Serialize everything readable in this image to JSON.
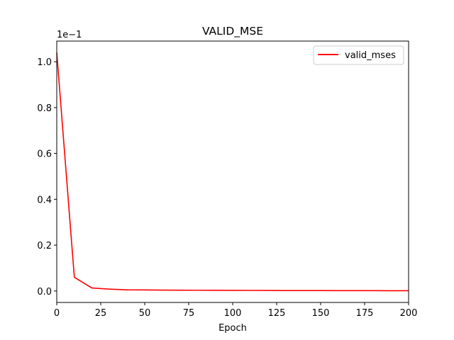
{
  "chart_data": {
    "type": "line",
    "title": "VALID_MSE",
    "xlabel": "Epoch",
    "ylabel": "",
    "scale_label": "1e−1",
    "xlim": [
      0,
      200
    ],
    "ylim": [
      -0.05,
      1.09
    ],
    "xticks": [
      0,
      25,
      50,
      75,
      100,
      125,
      150,
      175,
      200
    ],
    "xtick_labels": [
      "0",
      "25",
      "50",
      "75",
      "100",
      "125",
      "150",
      "175",
      "200"
    ],
    "yticks": [
      0.0,
      0.2,
      0.4,
      0.6,
      0.8,
      1.0
    ],
    "ytick_labels": [
      "0.0",
      "0.2",
      "0.4",
      "0.6",
      "0.8",
      "1.0"
    ],
    "grid": false,
    "legend_position": "upper right",
    "series": [
      {
        "name": "valid_mses",
        "color": "#ff0000",
        "x": [
          0,
          10,
          20,
          30,
          40,
          50,
          60,
          70,
          80,
          90,
          100,
          110,
          120,
          130,
          140,
          150,
          160,
          170,
          180,
          190,
          200
        ],
        "y": [
          1.04,
          0.06,
          0.013,
          0.008,
          0.005,
          0.0045,
          0.004,
          0.0035,
          0.0033,
          0.003,
          0.0028,
          0.0025,
          0.0023,
          0.0021,
          0.002,
          0.0018,
          0.0017,
          0.0016,
          0.0015,
          0.0013,
          0.0012
        ]
      }
    ]
  }
}
